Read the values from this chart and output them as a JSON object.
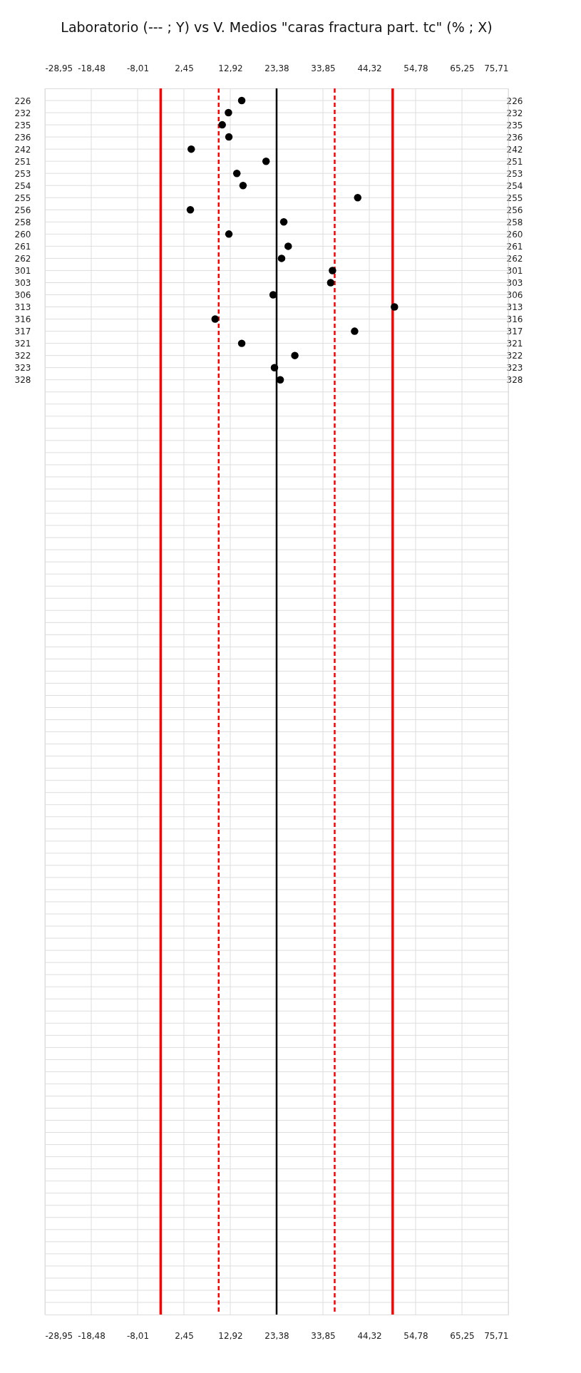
{
  "chart_data": {
    "type": "scatter",
    "orientation": "horizontal",
    "title": "Laboratorio (--- ; Y) vs V. Medios \"caras fractura part. tc\" (% ; X)",
    "categories": [
      "226",
      "232",
      "235",
      "236",
      "242",
      "251",
      "253",
      "254",
      "255",
      "256",
      "258",
      "260",
      "261",
      "262",
      "301",
      "303",
      "306",
      "313",
      "316",
      "317",
      "321",
      "322",
      "323",
      "328",
      null,
      null,
      null,
      null,
      null,
      null,
      null,
      null,
      null,
      null,
      null,
      null,
      null,
      null,
      null,
      null,
      null,
      null,
      null,
      null,
      null,
      null,
      null,
      null,
      null,
      null,
      null,
      null,
      null,
      null,
      null,
      null,
      null,
      null,
      null,
      null,
      null,
      null,
      null,
      null,
      null,
      null,
      null,
      null,
      null,
      null,
      null,
      null,
      null,
      null,
      null,
      null,
      null,
      null,
      null,
      null,
      null,
      null,
      null,
      null,
      null,
      null,
      null,
      null,
      null,
      null,
      null,
      null,
      null,
      null,
      null,
      null,
      null,
      null,
      null,
      null
    ],
    "series": [
      {
        "color": "#000000",
        "values": [
          15.5,
          12.5,
          11.1,
          12.6,
          4.1,
          21.0,
          14.4,
          15.8,
          41.7,
          3.9,
          25.0,
          12.6,
          26.0,
          24.5,
          36.0,
          35.6,
          22.6,
          50.0,
          9.5,
          41.0,
          15.5,
          27.5,
          22.9,
          24.2,
          null,
          null,
          null,
          null,
          null,
          null,
          null,
          null,
          null,
          null,
          null,
          null,
          null,
          null,
          null,
          null,
          null,
          null,
          null,
          null,
          null,
          null,
          null,
          null,
          null,
          null,
          null,
          null,
          null,
          null,
          null,
          null,
          null,
          null,
          null,
          null,
          null,
          null,
          null,
          null,
          null,
          null,
          null,
          null,
          null,
          null,
          null,
          null,
          null,
          null,
          null,
          null,
          null,
          null,
          null,
          null,
          null,
          null,
          null,
          null,
          null,
          null,
          null,
          null,
          null,
          null,
          null,
          null,
          null,
          null,
          null,
          null,
          null,
          null,
          null,
          null
        ]
      }
    ],
    "xlim": [
      -28.95,
      75.71
    ],
    "xticks": [
      {
        "value": -28.95,
        "label": "-28,95"
      },
      {
        "value": -18.48,
        "label": "-18,48"
      },
      {
        "value": -8.01,
        "label": "-8,01"
      },
      {
        "value": 2.45,
        "label": "2,45"
      },
      {
        "value": 12.92,
        "label": "12,92"
      },
      {
        "value": 23.38,
        "label": "23,38"
      },
      {
        "value": 33.85,
        "label": "33,85"
      },
      {
        "value": 44.32,
        "label": "44,32"
      },
      {
        "value": 54.78,
        "label": "54,78"
      },
      {
        "value": 65.25,
        "label": "65,25"
      },
      {
        "value": 75.71,
        "label": "75,71"
      }
    ],
    "x2lim": [
      -28.95,
      75.71
    ],
    "x2ticks": [
      {
        "value": -28.95,
        "label": "-28,95"
      },
      {
        "value": -18.48,
        "label": "-18,48"
      },
      {
        "value": -8.01,
        "label": "-8,01"
      },
      {
        "value": 2.45,
        "label": "2,45"
      },
      {
        "value": 12.92,
        "label": "12,92"
      },
      {
        "value": 23.38,
        "label": "23,38"
      },
      {
        "value": 33.85,
        "label": "33,85"
      },
      {
        "value": 44.32,
        "label": "44,32"
      },
      {
        "value": 54.78,
        "label": "54,78"
      },
      {
        "value": 65.25,
        "label": "65,25"
      },
      {
        "value": 75.71,
        "label": "75,71"
      }
    ],
    "ref_lines": [
      {
        "axis": "x",
        "value": -2.8,
        "color": "#ff0000",
        "line_style": "solid"
      },
      {
        "axis": "x",
        "value": 10.3,
        "color": "#ff0000",
        "line_style": "dashed"
      },
      {
        "axis": "x",
        "value": 23.38,
        "color": "#000000",
        "line_style": "solid"
      },
      {
        "axis": "x",
        "value": 36.5,
        "color": "#ff0000",
        "line_style": "dashed"
      },
      {
        "axis": "x",
        "value": 49.6,
        "color": "#ff0000",
        "line_style": "solid"
      }
    ],
    "grid": true,
    "marker": "circle"
  }
}
